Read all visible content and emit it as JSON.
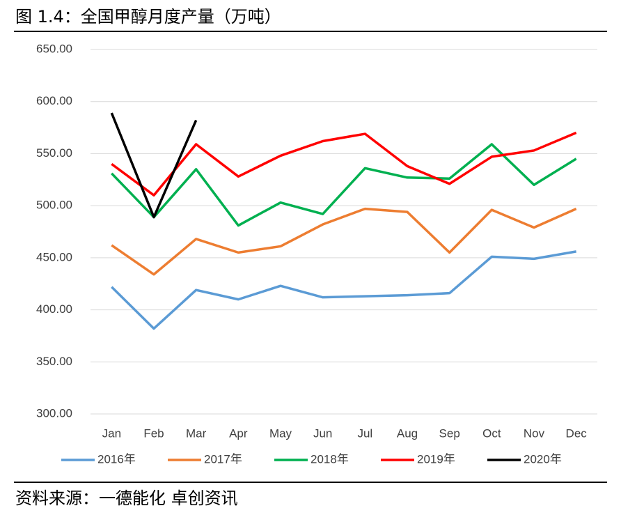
{
  "chart_data": {
    "type": "line",
    "title": "图 1.4：全国甲醇月度产量（万吨）",
    "source": "资料来源：一德能化 卓创资讯",
    "categories": [
      "Jan",
      "Feb",
      "Mar",
      "Apr",
      "May",
      "Jun",
      "Jul",
      "Aug",
      "Sep",
      "Oct",
      "Nov",
      "Dec"
    ],
    "ylim": [
      300,
      650
    ],
    "yticks": [
      {
        "value": 300,
        "label": "300.00"
      },
      {
        "value": 350,
        "label": "350.00"
      },
      {
        "value": 400,
        "label": "400.00"
      },
      {
        "value": 450,
        "label": "450.00"
      },
      {
        "value": 500,
        "label": "500.00"
      },
      {
        "value": 550,
        "label": "550.00"
      },
      {
        "value": 600,
        "label": "600.00"
      },
      {
        "value": 650,
        "label": "650.00"
      }
    ],
    "grid": true,
    "legend": "bottom",
    "series": [
      {
        "name": "2016年",
        "color": "#5b9bd5",
        "values": [
          422,
          382,
          419,
          410,
          423,
          412,
          413,
          414,
          416,
          451,
          449,
          456
        ]
      },
      {
        "name": "2017年",
        "color": "#ed7d31",
        "values": [
          462,
          434,
          468,
          455,
          461,
          482,
          497,
          494,
          455,
          496,
          479,
          497
        ]
      },
      {
        "name": "2018年",
        "color": "#00b050",
        "values": [
          531,
          489,
          535,
          481,
          503,
          492,
          536,
          527,
          526,
          559,
          520,
          545
        ]
      },
      {
        "name": "2019年",
        "color": "#ff0000",
        "values": [
          540,
          510,
          559,
          528,
          548,
          562,
          569,
          538,
          521,
          547,
          553,
          570
        ]
      },
      {
        "name": "2020年",
        "color": "#000000",
        "values": [
          589,
          489,
          582,
          null,
          null,
          null,
          null,
          null,
          null,
          null,
          null,
          null
        ]
      }
    ]
  }
}
